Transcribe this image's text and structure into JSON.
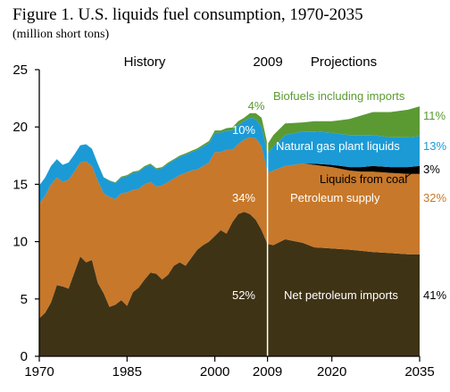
{
  "chart_data": {
    "type": "area",
    "title": "Figure 1. U.S. liquids fuel consumption, 1970-2035",
    "subtitle": "(million short tons)",
    "xlabel": "",
    "ylabel": "",
    "xlim": [
      1970,
      2035
    ],
    "ylim": [
      0,
      25
    ],
    "x_tick_labels": [
      "1970",
      "1985",
      "2000",
      "2009",
      "2020",
      "2035"
    ],
    "y_tick_labels": [
      "0",
      "5",
      "10",
      "15",
      "20",
      "25"
    ],
    "period_labels": {
      "history": "History",
      "divider_year": "2009",
      "projections": "Projections"
    },
    "divider_x": 2009,
    "stacking_order": [
      "Net petroleum imports",
      "Petroleum supply",
      "Liquids from coal",
      "Natural gas plant liquids",
      "Biofuels including imports"
    ],
    "series": [
      {
        "name": "Net petroleum imports",
        "color": "#3f3316",
        "label_color": "#ffffff",
        "x": [
          1970,
          1971,
          1972,
          1973,
          1974,
          1975,
          1976,
          1977,
          1978,
          1979,
          1980,
          1981,
          1982,
          1983,
          1984,
          1985,
          1986,
          1987,
          1988,
          1989,
          1990,
          1991,
          1992,
          1993,
          1994,
          1995,
          1996,
          1997,
          1998,
          1999,
          2000,
          2001,
          2002,
          2003,
          2004,
          2005,
          2006,
          2007,
          2008,
          2009,
          2010,
          2012,
          2015,
          2017,
          2020,
          2023,
          2025,
          2027,
          2030,
          2033,
          2035
        ],
        "values": [
          3.3,
          3.8,
          4.7,
          6.2,
          6.1,
          5.9,
          7.3,
          8.7,
          8.2,
          8.4,
          6.4,
          5.5,
          4.3,
          4.5,
          4.9,
          4.4,
          5.6,
          6.0,
          6.7,
          7.3,
          7.2,
          6.7,
          7.1,
          7.9,
          8.2,
          7.9,
          8.6,
          9.3,
          9.7,
          10.0,
          10.5,
          11.0,
          10.7,
          11.7,
          12.4,
          12.6,
          12.4,
          11.9,
          11.0,
          9.8,
          9.7,
          10.2,
          9.9,
          9.5,
          9.4,
          9.3,
          9.2,
          9.1,
          9.0,
          8.9,
          8.9
        ],
        "label": "Net petroleum imports",
        "share_2009": "52%",
        "share_2035": "41%"
      },
      {
        "name": "Petroleum supply",
        "color": "#c7782a",
        "label_color": "#ffffff",
        "x": [
          1970,
          1971,
          1972,
          1973,
          1974,
          1975,
          1976,
          1977,
          1978,
          1979,
          1980,
          1981,
          1982,
          1983,
          1984,
          1985,
          1986,
          1987,
          1988,
          1989,
          1990,
          1991,
          1992,
          1993,
          1994,
          1995,
          1996,
          1997,
          1998,
          1999,
          2000,
          2001,
          2002,
          2003,
          2004,
          2005,
          2006,
          2007,
          2008,
          2009,
          2010,
          2012,
          2015,
          2017,
          2020,
          2023,
          2025,
          2027,
          2030,
          2033,
          2035
        ],
        "values": [
          10.0,
          10.2,
          10.3,
          9.4,
          9.1,
          9.5,
          8.8,
          8.2,
          8.8,
          8.2,
          8.9,
          8.7,
          9.6,
          9.2,
          9.3,
          9.9,
          8.9,
          8.6,
          8.3,
          7.9,
          7.6,
          8.2,
          8.1,
          7.6,
          7.6,
          8.1,
          7.6,
          7.0,
          6.9,
          6.9,
          7.3,
          6.8,
          7.3,
          6.3,
          6.1,
          6.3,
          6.7,
          7.1,
          7.3,
          6.2,
          6.5,
          6.4,
          6.9,
          7.2,
          7.1,
          6.9,
          6.9,
          7.0,
          7.0,
          7.0,
          7.0
        ],
        "label": "Petroleum supply",
        "share_2009": "34%",
        "share_2035": "32%"
      },
      {
        "name": "Liquids from coal",
        "color": "#000000",
        "label_color": "#000000",
        "x": [
          2009,
          2012,
          2015,
          2017,
          2020,
          2023,
          2025,
          2027,
          2030,
          2033,
          2035
        ],
        "values": [
          0.0,
          0.0,
          0.0,
          0.1,
          0.2,
          0.3,
          0.4,
          0.5,
          0.5,
          0.6,
          0.7
        ],
        "label": "Liquids from coal",
        "share_2035": "3%"
      },
      {
        "name": "Natural gas plant liquids",
        "color": "#1c9ad6",
        "label_color": "#ffffff",
        "x": [
          1970,
          1971,
          1972,
          1973,
          1974,
          1975,
          1976,
          1977,
          1978,
          1979,
          1980,
          1981,
          1982,
          1983,
          1984,
          1985,
          1986,
          1987,
          1988,
          1989,
          1990,
          1991,
          1992,
          1993,
          1994,
          1995,
          1996,
          1997,
          1998,
          1999,
          2000,
          2001,
          2002,
          2003,
          2004,
          2005,
          2006,
          2007,
          2008,
          2009,
          2010,
          2012,
          2015,
          2017,
          2020,
          2023,
          2025,
          2027,
          2030,
          2033,
          2035
        ],
        "values": [
          1.6,
          1.6,
          1.6,
          1.6,
          1.5,
          1.5,
          1.5,
          1.5,
          1.5,
          1.5,
          1.5,
          1.4,
          1.4,
          1.4,
          1.4,
          1.4,
          1.5,
          1.5,
          1.5,
          1.5,
          1.5,
          1.5,
          1.6,
          1.6,
          1.6,
          1.6,
          1.6,
          1.7,
          1.7,
          1.7,
          1.7,
          1.7,
          1.7,
          1.7,
          1.7,
          1.6,
          1.7,
          1.7,
          1.7,
          1.7,
          2.1,
          2.7,
          2.8,
          2.8,
          2.8,
          2.8,
          2.8,
          2.7,
          2.6,
          2.6,
          2.6
        ],
        "label": "Natural gas plant liquids",
        "share_2009": "10%",
        "share_2035": "13%"
      },
      {
        "name": "Biofuels including imports",
        "color": "#5b9a33",
        "label_color": "#5b9a33",
        "x": [
          1970,
          1980,
          1985,
          1990,
          1995,
          2000,
          2002,
          2004,
          2005,
          2006,
          2007,
          2008,
          2009,
          2010,
          2012,
          2015,
          2017,
          2020,
          2023,
          2025,
          2027,
          2030,
          2033,
          2035
        ],
        "values": [
          0.0,
          0.0,
          0.1,
          0.1,
          0.1,
          0.2,
          0.2,
          0.3,
          0.3,
          0.4,
          0.5,
          0.8,
          0.8,
          1.0,
          1.0,
          0.8,
          0.9,
          1.0,
          1.4,
          1.7,
          2.0,
          2.2,
          2.4,
          2.6
        ],
        "label": "Biofuels including imports",
        "share_2009": "4%",
        "share_2035": "11%"
      }
    ]
  }
}
